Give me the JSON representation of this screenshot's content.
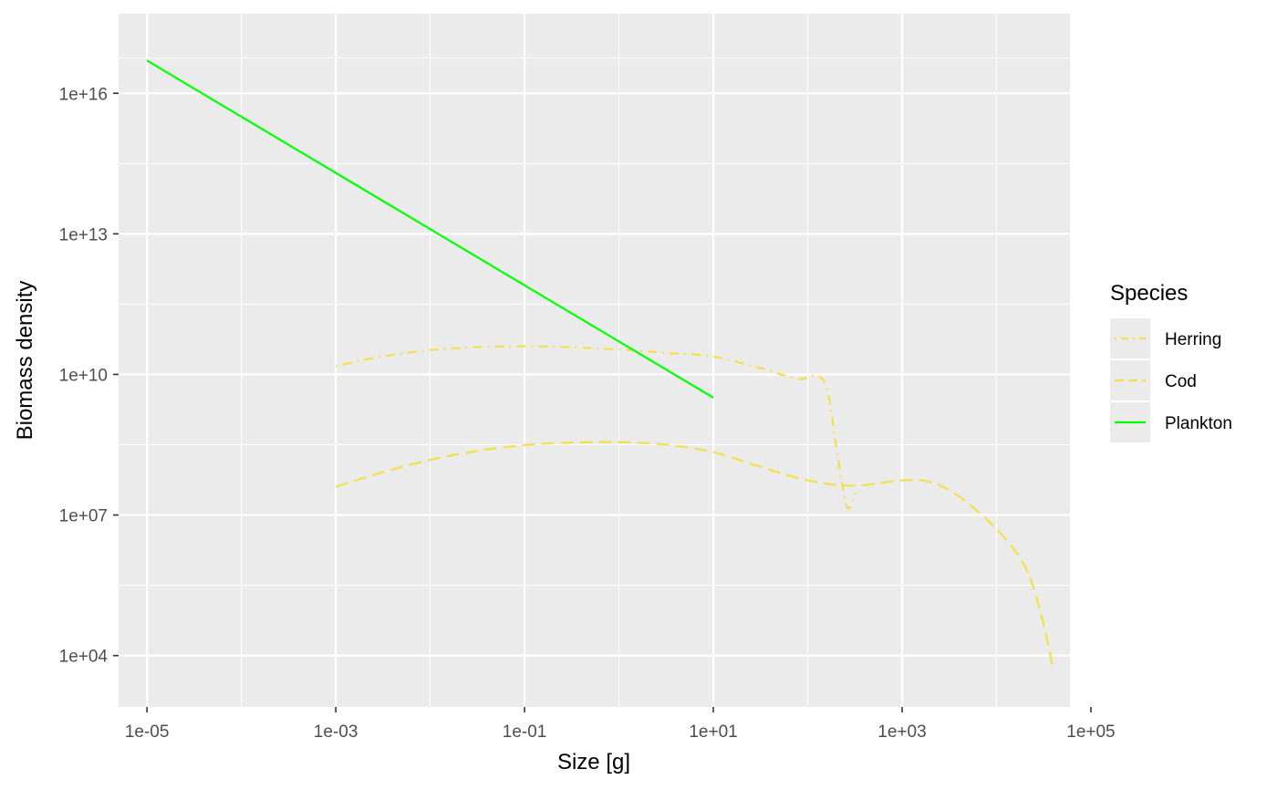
{
  "chart_data": {
    "type": "line",
    "title": "",
    "xlabel": "Size [g]",
    "ylabel": "Biomass density",
    "x_scale": "log10",
    "y_scale": "log10",
    "xlim": [
      5e-06,
      60000.0
    ],
    "ylim": [
      800,
      5e+17
    ],
    "x_ticks": [
      1e-05,
      0.001,
      0.1,
      10.0,
      1000.0,
      100000.0
    ],
    "x_tick_labels": [
      "1e-05",
      "1e-03",
      "1e-01",
      "1e+01",
      "1e+03",
      "1e+05"
    ],
    "y_ticks": [
      10000.0,
      10000000.0,
      10000000000.0,
      10000000000000.0,
      1e+16
    ],
    "y_tick_labels": [
      "1e+04",
      "1e+07",
      "1e+10",
      "1e+13",
      "1e+16"
    ],
    "grid": true,
    "legend": {
      "title": "Species",
      "position": "right"
    },
    "series": [
      {
        "name": "Herring",
        "color": "#f3df4a",
        "dash": "dotdash",
        "points": [
          [
            0.001,
            15000000000.0
          ],
          [
            0.003,
            24000000000.0
          ],
          [
            0.01,
            33000000000.0
          ],
          [
            0.03,
            38000000000.0
          ],
          [
            0.1,
            40000000000.0
          ],
          [
            0.3,
            38000000000.0
          ],
          [
            1,
            34000000000.0
          ],
          [
            3,
            29000000000.0
          ],
          [
            10,
            24000000000.0
          ],
          [
            30,
            14000000000.0
          ],
          [
            80,
            8000000000.0
          ],
          [
            120,
            9500000000.0
          ],
          [
            160,
            5000000000.0
          ],
          [
            200,
            300000000.0
          ],
          [
            260,
            15000000.0
          ],
          [
            320,
            30000000.0
          ]
        ]
      },
      {
        "name": "Cod",
        "color": "#f3df4a",
        "dash": "dashed",
        "points": [
          [
            0.001,
            40000000.0
          ],
          [
            0.003,
            80000000.0
          ],
          [
            0.01,
            150000000.0
          ],
          [
            0.03,
            230000000.0
          ],
          [
            0.1,
            310000000.0
          ],
          [
            0.3,
            350000000.0
          ],
          [
            1,
            360000000.0
          ],
          [
            3,
            320000000.0
          ],
          [
            10,
            220000000.0
          ],
          [
            30,
            110000000.0
          ],
          [
            100,
            55000000.0
          ],
          [
            300,
            42000000.0
          ],
          [
            1000,
            55000000.0
          ],
          [
            2000,
            50000000.0
          ],
          [
            4000,
            25000000.0
          ],
          [
            10000,
            5000000.0
          ],
          [
            20000,
            800000.0
          ],
          [
            30000,
            70000.0
          ],
          [
            40000,
            5000.0
          ]
        ]
      },
      {
        "name": "Plankton",
        "color": "#00ff00",
        "dash": "solid",
        "points": [
          [
            1e-05,
            5e+16
          ],
          [
            10,
            3200000000.0
          ]
        ]
      }
    ]
  }
}
